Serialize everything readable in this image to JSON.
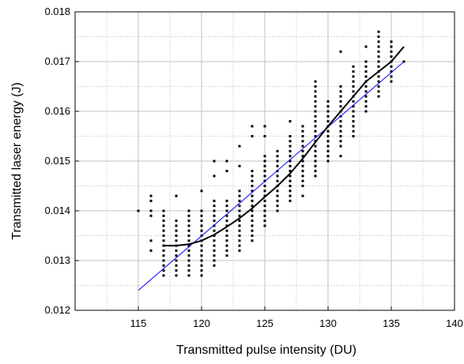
{
  "chart_data": {
    "type": "scatter",
    "title": "",
    "xlabel": "Transmitted pulse intensity (DU)",
    "ylabel": "Transmitted laser energy (J)",
    "xlim": [
      110,
      140
    ],
    "ylim": [
      0.012,
      0.018
    ],
    "x_ticks": [
      {
        "value": 115,
        "label": "115"
      },
      {
        "value": 120,
        "label": "120"
      },
      {
        "value": 125,
        "label": "125"
      },
      {
        "value": 130,
        "label": "130"
      },
      {
        "value": 135,
        "label": "135"
      },
      {
        "value": 140,
        "label": "140"
      }
    ],
    "x_minor_step": 2.5,
    "y_ticks": [
      {
        "value": 0.012,
        "label": "0.012"
      },
      {
        "value": 0.013,
        "label": "0.013"
      },
      {
        "value": 0.014,
        "label": "0.014"
      },
      {
        "value": 0.015,
        "label": "0.015"
      },
      {
        "value": 0.016,
        "label": "0.016"
      },
      {
        "value": 0.017,
        "label": "0.017"
      },
      {
        "value": 0.018,
        "label": "0.018"
      }
    ],
    "y_minor_step": 0.0005,
    "grid": true,
    "legend": "none",
    "colors": {
      "points": "#000000",
      "fit_curve": "#000000",
      "linear_fit": "#0000ff",
      "grid": "#c0c0c0"
    },
    "scatter_columns": [
      {
        "x": 115,
        "y": [
          0.014
        ]
      },
      {
        "x": 116,
        "y": [
          0.0132,
          0.0134,
          0.0139,
          0.014,
          0.0142,
          0.0143
        ]
      },
      {
        "x": 117,
        "y": [
          0.0127,
          0.0128,
          0.0129,
          0.013,
          0.0131,
          0.0132,
          0.0133,
          0.0134,
          0.0135,
          0.0136,
          0.0137,
          0.0138,
          0.0139,
          0.014
        ]
      },
      {
        "x": 118,
        "y": [
          0.0127,
          0.0128,
          0.0129,
          0.013,
          0.0131,
          0.0132,
          0.0133,
          0.0134,
          0.0135,
          0.0136,
          0.0137,
          0.0138,
          0.0143
        ]
      },
      {
        "x": 119,
        "y": [
          0.0127,
          0.0128,
          0.0129,
          0.013,
          0.0131,
          0.0132,
          0.0133,
          0.0134,
          0.0135,
          0.0136,
          0.0137,
          0.0138,
          0.0139,
          0.014
        ]
      },
      {
        "x": 120,
        "y": [
          0.0127,
          0.0128,
          0.0129,
          0.013,
          0.0131,
          0.0132,
          0.0133,
          0.0134,
          0.0135,
          0.0136,
          0.0137,
          0.0138,
          0.0139,
          0.014,
          0.0144
        ]
      },
      {
        "x": 121,
        "y": [
          0.0129,
          0.013,
          0.0131,
          0.0132,
          0.0133,
          0.0134,
          0.0135,
          0.0136,
          0.0137,
          0.0138,
          0.0139,
          0.014,
          0.0141,
          0.0142,
          0.0147,
          0.015
        ]
      },
      {
        "x": 122,
        "y": [
          0.0131,
          0.0132,
          0.0133,
          0.0134,
          0.0135,
          0.0136,
          0.0137,
          0.0138,
          0.0139,
          0.014,
          0.0141,
          0.0142,
          0.0148,
          0.015
        ]
      },
      {
        "x": 123,
        "y": [
          0.0132,
          0.0133,
          0.0134,
          0.0135,
          0.0136,
          0.0137,
          0.0138,
          0.0139,
          0.014,
          0.0141,
          0.0142,
          0.0143,
          0.0144,
          0.0149,
          0.0153
        ]
      },
      {
        "x": 124,
        "y": [
          0.0134,
          0.0135,
          0.0136,
          0.0137,
          0.0138,
          0.0139,
          0.014,
          0.0141,
          0.0142,
          0.0143,
          0.0144,
          0.0145,
          0.0146,
          0.0147,
          0.0148,
          0.0155,
          0.0157
        ]
      },
      {
        "x": 125,
        "y": [
          0.0137,
          0.0138,
          0.0139,
          0.014,
          0.0141,
          0.0142,
          0.0143,
          0.0144,
          0.0145,
          0.0146,
          0.0147,
          0.0148,
          0.0149,
          0.015,
          0.0151,
          0.0155,
          0.0157
        ]
      },
      {
        "x": 126,
        "y": [
          0.014,
          0.0141,
          0.0142,
          0.0143,
          0.0144,
          0.0145,
          0.0146,
          0.0147,
          0.0148,
          0.0149,
          0.015,
          0.0151,
          0.0152
        ]
      },
      {
        "x": 127,
        "y": [
          0.0142,
          0.0143,
          0.0144,
          0.0145,
          0.0146,
          0.0147,
          0.0148,
          0.0149,
          0.015,
          0.0151,
          0.0152,
          0.0153,
          0.0154,
          0.0155,
          0.0158
        ]
      },
      {
        "x": 128,
        "y": [
          0.0143,
          0.0145,
          0.0146,
          0.0147,
          0.0148,
          0.0149,
          0.015,
          0.0151,
          0.0152,
          0.0153,
          0.0154,
          0.0155,
          0.0156,
          0.0157
        ]
      },
      {
        "x": 129,
        "y": [
          0.0147,
          0.0148,
          0.0149,
          0.015,
          0.0151,
          0.0152,
          0.0153,
          0.0154,
          0.0155,
          0.0156,
          0.0157,
          0.0158,
          0.0159,
          0.016,
          0.0161,
          0.0162,
          0.0163,
          0.0164,
          0.0165,
          0.0166
        ]
      },
      {
        "x": 130,
        "y": [
          0.015,
          0.0151,
          0.0152,
          0.0153,
          0.0154,
          0.0155,
          0.0156,
          0.0157,
          0.0158,
          0.0159,
          0.016,
          0.0161,
          0.0162
        ]
      },
      {
        "x": 131,
        "y": [
          0.0151,
          0.0153,
          0.0154,
          0.0155,
          0.0156,
          0.0157,
          0.0158,
          0.0159,
          0.016,
          0.0161,
          0.0162,
          0.0163,
          0.0164,
          0.0165,
          0.0172
        ]
      },
      {
        "x": 132,
        "y": [
          0.0155,
          0.0156,
          0.0157,
          0.0158,
          0.0159,
          0.016,
          0.0161,
          0.0162,
          0.0163,
          0.0164,
          0.0165,
          0.0166,
          0.0167,
          0.0168,
          0.0169
        ]
      },
      {
        "x": 133,
        "y": [
          0.016,
          0.0161,
          0.0162,
          0.0163,
          0.0164,
          0.0165,
          0.0166,
          0.0167,
          0.0168,
          0.0169,
          0.017,
          0.0173
        ]
      },
      {
        "x": 134,
        "y": [
          0.0163,
          0.0164,
          0.0165,
          0.0166,
          0.0167,
          0.0168,
          0.0169,
          0.017,
          0.0171,
          0.0172,
          0.0173,
          0.0174,
          0.0175,
          0.0176
        ]
      },
      {
        "x": 135,
        "y": [
          0.0166,
          0.0167,
          0.0168,
          0.0169,
          0.017,
          0.0171,
          0.0172,
          0.0173,
          0.0174
        ]
      },
      {
        "x": 136,
        "y": [
          0.017
        ]
      }
    ],
    "fit_curve": [
      {
        "x": 117,
        "y": 0.0133
      },
      {
        "x": 118,
        "y": 0.0133
      },
      {
        "x": 119,
        "y": 0.01333
      },
      {
        "x": 120,
        "y": 0.0134
      },
      {
        "x": 121,
        "y": 0.01352
      },
      {
        "x": 122,
        "y": 0.01368
      },
      {
        "x": 123,
        "y": 0.01385
      },
      {
        "x": 124,
        "y": 0.01405
      },
      {
        "x": 125,
        "y": 0.01428
      },
      {
        "x": 126,
        "y": 0.0145
      },
      {
        "x": 127,
        "y": 0.01475
      },
      {
        "x": 128,
        "y": 0.01505
      },
      {
        "x": 129,
        "y": 0.01538
      },
      {
        "x": 130,
        "y": 0.0157
      },
      {
        "x": 131,
        "y": 0.016
      },
      {
        "x": 132,
        "y": 0.0163
      },
      {
        "x": 133,
        "y": 0.0166
      },
      {
        "x": 134,
        "y": 0.0168
      },
      {
        "x": 135,
        "y": 0.017
      },
      {
        "x": 136,
        "y": 0.0173
      }
    ],
    "linear_fit": [
      {
        "x": 115,
        "y": 0.0124
      },
      {
        "x": 136,
        "y": 0.017
      }
    ]
  }
}
